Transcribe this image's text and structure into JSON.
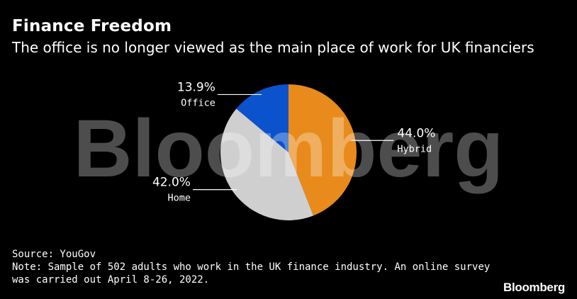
{
  "header": {
    "title": "Finance Freedom",
    "subtitle": "The office is no longer viewed as the main place of work for UK financiers"
  },
  "watermark": "Bloomberg",
  "chart_data": {
    "type": "pie",
    "title": "Finance Freedom",
    "subtitle": "The office is no longer viewed as the main place of work for UK financiers",
    "slices": [
      {
        "name": "Hybrid",
        "value": 44.0,
        "label": "44.0%",
        "color": "#E88B1C",
        "label_side": "right"
      },
      {
        "name": "Home",
        "value": 42.0,
        "label": "42.0%",
        "color": "#CFCFCF",
        "label_side": "left"
      },
      {
        "name": "Office",
        "value": 13.9,
        "label": "13.9%",
        "color": "#0A53CC",
        "label_side": "left"
      }
    ],
    "start": "top",
    "direction": "clockwise",
    "legend": "none"
  },
  "footer": {
    "source": "Source: YouGov",
    "note_line1": "Note: Sample of 502 adults who work in the UK finance industry. An online survey",
    "note_line2": "was carried out April 8-26, 2022."
  },
  "brand": "Bloomberg"
}
